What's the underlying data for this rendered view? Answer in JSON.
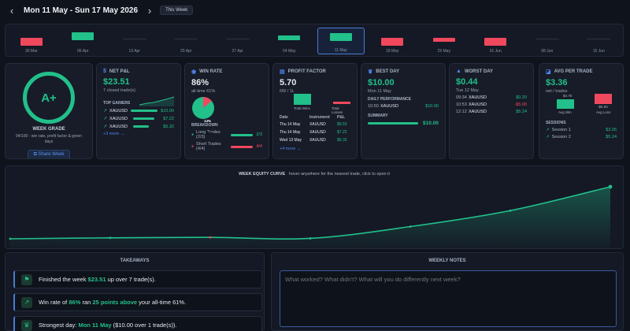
{
  "nav": {
    "range": "Mon 11 May - Sun 17 May 2026",
    "this_week": "This Week",
    "prev": "‹",
    "next": "›"
  },
  "week_strip": [
    {
      "label": "30 Mar",
      "state": "loss",
      "value": -1
    },
    {
      "label": "06 Apr",
      "state": "win",
      "value": 1
    },
    {
      "label": "13 Apr",
      "state": "none"
    },
    {
      "label": "20 Apr",
      "state": "none"
    },
    {
      "label": "27 Apr",
      "state": "none"
    },
    {
      "label": "04 May",
      "state": "win",
      "value": 0.6
    },
    {
      "label": "11 May",
      "state": "win",
      "value": 1,
      "selected": true
    },
    {
      "label": "18 May",
      "state": "loss",
      "value": -1
    },
    {
      "label": "25 May",
      "state": "loss",
      "value": -0.5
    },
    {
      "label": "01 Jun",
      "state": "loss",
      "value": -1
    },
    {
      "label": "08 Jun",
      "state": "none"
    },
    {
      "label": "15 Jun",
      "state": "none"
    }
  ],
  "grade": {
    "value": "A+",
    "label": "WEEK GRADE",
    "desc": "94/100 - win rate, profit factor & green days",
    "share": "Share Week"
  },
  "pnl": {
    "title": "NET P&L",
    "value": "$23.51",
    "sub": "7 closed trade(s)",
    "gainers_title": "TOP GAINERS",
    "gainers": [
      {
        "name": "XAUUSD",
        "value": "$10.00",
        "fill": 1
      },
      {
        "name": "XAUUSD",
        "value": "$7.22",
        "fill": 0.72
      },
      {
        "name": "XAUUSD",
        "value": "$5.32",
        "fill": 0.53
      }
    ],
    "more": "+3 more →"
  },
  "winrate": {
    "title": "WIN RATE",
    "value": "86%",
    "sub": "all-time 61%",
    "pie_label": "86%",
    "pie_small": "14%",
    "win_pct": 86,
    "breakdown_title": "BREAKDOWN",
    "long": {
      "label": "Long Trades (2/3)",
      "value": "2/3"
    },
    "short": {
      "label": "Short Trades (4/4)",
      "value": "4/4"
    }
  },
  "pf": {
    "title": "PROFIT FACTOR",
    "value": "5.70",
    "sub": "6W / 1L",
    "wins_label": "Total Wins",
    "loss_label": "Total Losses",
    "cols": [
      "Date",
      "Instrument",
      "P&L"
    ],
    "rows": [
      [
        "Thu 14 May",
        "XAUUSD",
        "$0.53"
      ],
      [
        "Thu 14 May",
        "XAUUSD",
        "$7.22"
      ],
      [
        "Wed 13 May",
        "XAUUSD",
        "$5.32"
      ]
    ],
    "more": "+4 more →"
  },
  "best": {
    "title": "BEST DAY",
    "value": "$10.00",
    "sub": "Mon 11 May",
    "daily_title": "DAILY PERFORMANCE",
    "trade": {
      "time": "10:50",
      "sym": "XAUUSD",
      "val": "$10.00"
    },
    "summary_title": "SUMMARY",
    "summary_value": "$10.00"
  },
  "worst": {
    "title": "WORST DAY",
    "value": "$0.44",
    "sub": "Tue 12 May",
    "trades": [
      {
        "time": "09:34",
        "sym": "XAUUSD",
        "val": "$0.20"
      },
      {
        "time": "10:53",
        "sym": "XAUUSD",
        "val": "-$5.00"
      },
      {
        "time": "12:12",
        "sym": "XAUUSD",
        "val": "$5.24"
      }
    ]
  },
  "avg": {
    "title": "AVG PER TRADE",
    "value": "$3.36",
    "sub": "net / trades",
    "win_val": "$4.75",
    "loss_val": "-$5.00",
    "win_lbl": "Avg Win",
    "loss_lbl": "Avg Loss",
    "sessions_title": "SESSIONS",
    "sessions": [
      {
        "name": "Session 1",
        "val": "$3.05"
      },
      {
        "name": "Session 2",
        "val": "$5.24"
      }
    ]
  },
  "equity": {
    "title": "WEEK EQUITY CURVE",
    "hint": "hover anywhere for the nearest trade, click to open it",
    "points": [
      0,
      0.44,
      0.64,
      0.2,
      5.52,
      12.74,
      23.51
    ],
    "marker_colors": [
      "win",
      "win",
      "loss",
      "win",
      "win",
      "win",
      "win"
    ]
  },
  "takeaways": {
    "title": "TAKEAWAYS",
    "items": [
      {
        "pre": "Finished the week ",
        "hl": "$23.51",
        "post": " up over 7 trade(s).",
        "icon": "flag"
      },
      {
        "pre": "Win rate of ",
        "hl": "86%",
        "mid": " ran ",
        "hl2": "25 points above",
        "post": " your all-time 61%.",
        "icon": "trend"
      },
      {
        "pre": "Strongest day: ",
        "hl": "Mon 11 May",
        "post": " ($10.00 over 1 trade(s)).",
        "icon": "trophy"
      }
    ]
  },
  "notes": {
    "title": "WEEKLY NOTES",
    "placeholder": "What worked? What didn't? What will you do differently next week?"
  },
  "colors": {
    "win": "#22c08a",
    "loss": "#f0485d",
    "accent": "#4e86f0"
  }
}
